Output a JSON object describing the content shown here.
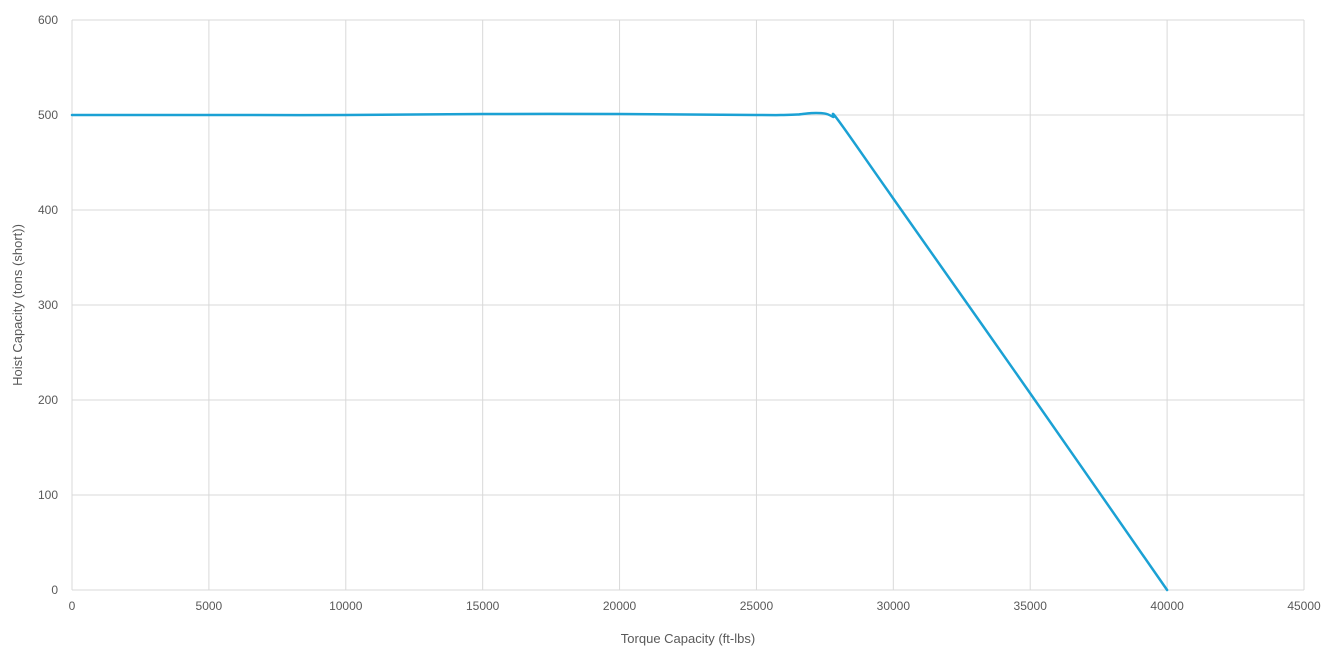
{
  "chart_data": {
    "type": "line",
    "title": "",
    "xlabel": "Torque Capacity (ft-lbs)",
    "ylabel": "Hoist Capacity (tons (short))",
    "xlim": [
      0,
      45000
    ],
    "ylim": [
      0,
      600
    ],
    "x_ticks": [
      0,
      5000,
      10000,
      15000,
      20000,
      25000,
      30000,
      35000,
      40000,
      45000
    ],
    "y_ticks": [
      0,
      100,
      200,
      300,
      400,
      500,
      600
    ],
    "grid": true,
    "legend": "none",
    "series": [
      {
        "color": "#1ba1d4",
        "x": [
          0,
          5000,
          10000,
          15000,
          20000,
          25000,
          26000,
          26500,
          27000,
          27500,
          27800,
          28000,
          30000,
          35000,
          40000
        ],
        "y": [
          500,
          500,
          500,
          501,
          501,
          500,
          500,
          500.5,
          502,
          501.5,
          498,
          494,
          412,
          207,
          0
        ]
      }
    ]
  }
}
